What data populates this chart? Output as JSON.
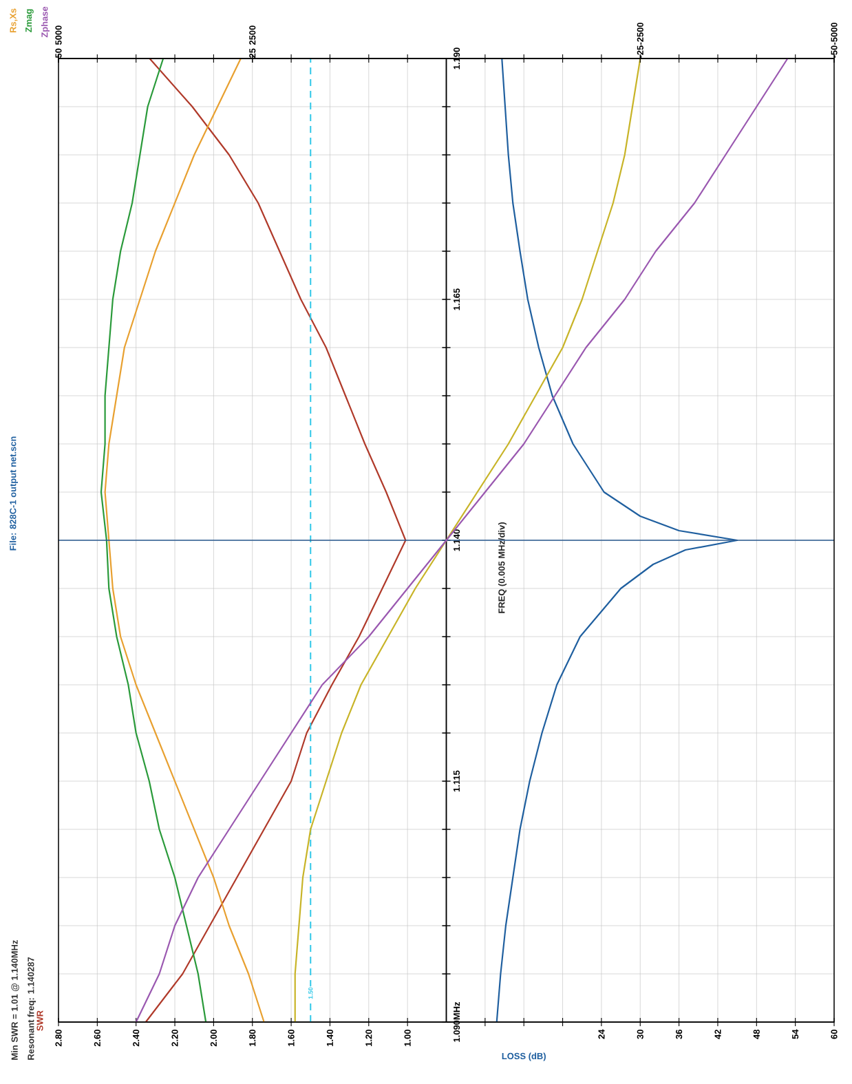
{
  "chart_data": [
    {
      "type": "line",
      "title": "File: 828C-1 output net.scn",
      "annotations": [
        "Min SWR = 1.01 @ 1.140MHz",
        "Resonant freq: 1.140287"
      ],
      "ylabel": "FREQ (0.005 MHz/div)",
      "xlim": [
        2.8,
        0.8
      ],
      "xticks": [
        {
          "value": 2.8,
          "label": "2.80"
        },
        {
          "value": 2.6,
          "label": "2.60"
        },
        {
          "value": 2.4,
          "label": "2.40"
        },
        {
          "value": 2.2,
          "label": "2.20"
        },
        {
          "value": 2.0,
          "label": "2.00"
        },
        {
          "value": 1.8,
          "label": "1.80"
        },
        {
          "value": 1.6,
          "label": "1.60"
        },
        {
          "value": 1.4,
          "label": "1.40"
        },
        {
          "value": 1.2,
          "label": "1.20"
        },
        {
          "value": 1.0,
          "label": "1.00"
        }
      ],
      "ylim": [
        1.09,
        1.19
      ],
      "yticks": [
        {
          "value": 1.09,
          "label": "1.090MHz"
        },
        {
          "value": 1.095,
          "label": null
        },
        {
          "value": 1.1,
          "label": null
        },
        {
          "value": 1.105,
          "label": null
        },
        {
          "value": 1.11,
          "label": null
        },
        {
          "value": 1.115,
          "label": "1.115"
        },
        {
          "value": 1.12,
          "label": null
        },
        {
          "value": 1.125,
          "label": null
        },
        {
          "value": 1.13,
          "label": null
        },
        {
          "value": 1.135,
          "label": null
        },
        {
          "value": 1.14,
          "label": "1.140"
        },
        {
          "value": 1.145,
          "label": null
        },
        {
          "value": 1.15,
          "label": null
        },
        {
          "value": 1.155,
          "label": null
        },
        {
          "value": 1.16,
          "label": null
        },
        {
          "value": 1.165,
          "label": "1.165"
        },
        {
          "value": 1.17,
          "label": null
        },
        {
          "value": 1.175,
          "label": null
        },
        {
          "value": 1.18,
          "label": null
        },
        {
          "value": 1.185,
          "label": null
        },
        {
          "value": 1.19,
          "label": "1.190"
        }
      ],
      "grid": true,
      "ref_lines": [
        {
          "axis": "x",
          "value": 1.5,
          "label": "1.50",
          "color": "#30c8e8",
          "line_style": "dashed"
        }
      ],
      "series": [
        {
          "name": "SWR",
          "color": "#b03a2a",
          "x": [
            2.35,
            2.16,
            2.02,
            1.88,
            1.74,
            1.6,
            1.52,
            1.39,
            1.25,
            1.13,
            1.01,
            1.11,
            1.22,
            1.32,
            1.42,
            1.55,
            1.66,
            1.77,
            1.92,
            2.11,
            2.33
          ],
          "values": [
            1.09,
            1.095,
            1.1,
            1.105,
            1.11,
            1.115,
            1.12,
            1.125,
            1.13,
            1.135,
            1.14,
            1.145,
            1.15,
            1.155,
            1.16,
            1.165,
            1.17,
            1.175,
            1.18,
            1.185,
            1.19
          ]
        }
      ]
    },
    {
      "type": "line",
      "xlabel": "LOSS (dB)",
      "xlim": [
        0,
        60
      ],
      "xticks": [
        {
          "value": 6,
          "label": null
        },
        {
          "value": 12,
          "label": null
        },
        {
          "value": 18,
          "label": null
        },
        24,
        30,
        36,
        42,
        48,
        54,
        60
      ],
      "ylim": [
        1.09,
        1.19
      ],
      "yticks": [
        1.09,
        1.095,
        1.1,
        1.105,
        1.11,
        1.115,
        1.12,
        1.125,
        1.13,
        1.135,
        1.14,
        1.145,
        1.15,
        1.155,
        1.16,
        1.165,
        1.17,
        1.175,
        1.18,
        1.185,
        1.19
      ],
      "tick_labels": "x",
      "grid": true,
      "series": [
        {
          "color": "#1f5f9f",
          "x": [
            7.8,
            8.4,
            9.2,
            10.3,
            11.4,
            12.9,
            14.8,
            17.1,
            20.7,
            27,
            32,
            37,
            45,
            36,
            30,
            24.4,
            19.6,
            16.4,
            14.3,
            12.6,
            11.4,
            10.3,
            9.6,
            9.1,
            8.6
          ],
          "values": [
            1.09,
            1.095,
            1.1,
            1.105,
            1.11,
            1.115,
            1.12,
            1.125,
            1.13,
            1.135,
            1.1375,
            1.139,
            1.14,
            1.141,
            1.1425,
            1.145,
            1.15,
            1.155,
            1.16,
            1.165,
            1.17,
            1.175,
            1.18,
            1.185,
            1.19
          ]
        }
      ]
    },
    {
      "type": "line",
      "x2label": "Zphase",
      "xlim": [
        5000,
        -5000
      ],
      "xticks": [
        5000,
        {
          "value": 4500,
          "label": null
        },
        {
          "value": 4000,
          "label": null
        },
        {
          "value": 3500,
          "label": null
        },
        {
          "value": 3000,
          "label": null
        },
        2500,
        {
          "value": 2000,
          "label": null
        },
        {
          "value": 1500,
          "label": null
        },
        {
          "value": 1000,
          "label": null
        },
        {
          "value": 500,
          "label": null
        },
        {
          "value": -500,
          "label": null
        },
        {
          "value": -1000,
          "label": null
        },
        {
          "value": -1500,
          "label": null
        },
        {
          "value": -2000,
          "label": null
        },
        -2500,
        {
          "value": -3000,
          "label": null
        },
        {
          "value": -3500,
          "label": null
        },
        {
          "value": -4000,
          "label": null
        },
        {
          "value": -4500,
          "label": null
        },
        -5000
      ],
      "x2lim": [
        50,
        -50
      ],
      "x2ticks": [
        50,
        25,
        -25,
        -50
      ],
      "ylim": [
        1.09,
        1.19
      ],
      "tick_labels": "x",
      "ref_lines": [
        {
          "axis": "y",
          "value": 1.14,
          "color": "#2a5a90"
        }
      ],
      "series": [
        {
          "name": "Rs,Xs",
          "color": "#e8a030",
          "x": [
            2350,
            2550,
            2800,
            3000,
            3250,
            3500,
            3750,
            4000,
            4200,
            4300,
            4350,
            4400,
            4350,
            4250,
            4150,
            3950,
            3750,
            3500,
            3250,
            2950,
            2650
          ],
          "values": [
            1.09,
            1.095,
            1.1,
            1.105,
            1.11,
            1.115,
            1.12,
            1.125,
            1.13,
            1.135,
            1.14,
            1.145,
            1.15,
            1.155,
            1.16,
            1.165,
            1.17,
            1.175,
            1.18,
            1.185,
            1.19
          ]
        },
        {
          "color": "#c8b428",
          "x": [
            1950,
            1950,
            1900,
            1850,
            1750,
            1550,
            1350,
            1100,
            750,
            400,
            0,
            -400,
            -800,
            -1150,
            -1500,
            -1750,
            -1950,
            -2150,
            -2300,
            -2400,
            -2500
          ],
          "values": [
            1.09,
            1.095,
            1.1,
            1.105,
            1.11,
            1.115,
            1.12,
            1.125,
            1.13,
            1.135,
            1.14,
            1.145,
            1.15,
            1.155,
            1.16,
            1.165,
            1.17,
            1.175,
            1.18,
            1.185,
            1.19
          ]
        },
        {
          "name": "Zmag",
          "color": "#2a9a3a",
          "x": [
            3100,
            3200,
            3350,
            3500,
            3700,
            3830,
            4000,
            4100,
            4250,
            4350,
            4380,
            4450,
            4400,
            4400,
            4350,
            4300,
            4200,
            4050,
            3950,
            3850,
            3650
          ],
          "values": [
            1.09,
            1.095,
            1.1,
            1.105,
            1.11,
            1.115,
            1.12,
            1.125,
            1.13,
            1.135,
            1.14,
            1.145,
            1.15,
            1.155,
            1.16,
            1.165,
            1.17,
            1.175,
            1.18,
            1.185,
            1.19
          ]
        },
        {
          "color": "#9a58b0",
          "axis": "x2",
          "x": [
            40,
            37,
            35,
            32,
            28,
            24,
            20,
            16,
            10,
            5,
            0,
            -5,
            -10,
            -14,
            -18,
            -23,
            -27,
            -32,
            -36,
            -40,
            -44
          ],
          "values": [
            1.09,
            1.095,
            1.1,
            1.105,
            1.11,
            1.115,
            1.12,
            1.125,
            1.13,
            1.135,
            1.14,
            1.145,
            1.15,
            1.155,
            1.16,
            1.165,
            1.17,
            1.175,
            1.18,
            1.185,
            1.19
          ]
        }
      ]
    }
  ]
}
